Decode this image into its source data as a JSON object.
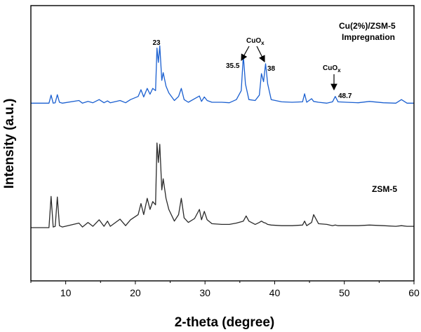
{
  "chart_data": {
    "type": "line",
    "title": "",
    "xlabel": "2-theta (degree)",
    "ylabel": "Intensity (a.u.)",
    "xlim": [
      5,
      60
    ],
    "xticks": [
      10,
      20,
      30,
      40,
      50,
      60
    ],
    "yticks_shown": false,
    "grid": false,
    "legend": "none",
    "series": [
      {
        "label_lines": [
          "Cu(2%)/ZSM-5",
          "Impregnation"
        ],
        "color": "#1a5fd0",
        "x": [
          5,
          7.6,
          7.9,
          8.2,
          8.5,
          8.8,
          9.1,
          9.5,
          11.9,
          12.4,
          13.2,
          13.9,
          14.8,
          15.5,
          16.0,
          16.4,
          17.8,
          18.6,
          19.3,
          20.4,
          20.8,
          21.2,
          21.7,
          22.1,
          22.5,
          22.9,
          23.1,
          23.3,
          23.5,
          23.8,
          24.0,
          24.4,
          24.8,
          25.6,
          26.2,
          26.6,
          27.0,
          27.6,
          28.5,
          29.2,
          29.5,
          29.9,
          30.3,
          31.0,
          32.4,
          33.5,
          34.5,
          35.2,
          35.5,
          35.8,
          36.3,
          37.2,
          37.8,
          38.1,
          38.4,
          38.7,
          39.0,
          39.5,
          41.0,
          42.5,
          44.0,
          44.3,
          44.6,
          45.3,
          45.6,
          46.3,
          47.5,
          48.3,
          48.7,
          49.1,
          50.3,
          52.0,
          53.6,
          55.6,
          57.4,
          58.2,
          59.0,
          60
        ],
        "y": [
          12,
          12,
          30,
          12,
          13,
          31,
          14,
          12,
          18,
          12,
          16,
          13,
          20,
          13,
          17,
          13,
          18,
          13,
          20,
          27,
          42,
          26,
          45,
          32,
          45,
          40,
          135,
          103,
          140,
          63,
          80,
          50,
          35,
          18,
          27,
          45,
          20,
          14,
          22,
          28,
          16,
          26,
          18,
          14,
          14,
          13,
          20,
          40,
          118,
          55,
          20,
          18,
          30,
          78,
          60,
          100,
          55,
          20,
          15,
          14,
          15,
          33,
          14,
          22,
          16,
          14,
          12,
          15,
          27,
          15,
          14,
          13,
          16,
          13,
          12,
          20,
          12,
          12
        ]
      },
      {
        "label_lines": [
          "ZSM-5"
        ],
        "color": "#2a2a2a",
        "x": [
          5,
          7.6,
          7.9,
          8.2,
          8.5,
          8.8,
          9.1,
          9.5,
          11.9,
          12.4,
          13.2,
          13.9,
          14.8,
          15.5,
          16.0,
          16.4,
          17.8,
          18.6,
          19.3,
          20.4,
          20.8,
          21.2,
          21.7,
          22.1,
          22.5,
          22.9,
          23.1,
          23.3,
          23.5,
          23.8,
          24.0,
          24.4,
          24.8,
          25.6,
          26.2,
          26.6,
          27.0,
          27.6,
          28.5,
          29.2,
          29.5,
          29.9,
          30.3,
          31.0,
          32.4,
          33.5,
          34.5,
          35.2,
          35.5,
          35.9,
          36.3,
          37.2,
          37.8,
          38.1,
          38.4,
          38.7,
          39.0,
          39.5,
          41.0,
          42.5,
          44.0,
          44.3,
          44.6,
          45.3,
          45.6,
          46.3,
          47.5,
          48.3,
          48.7,
          49.1,
          50.3,
          52.0,
          53.6,
          55.6,
          57.4,
          58.2,
          59.0,
          60
        ],
        "y": [
          0,
          0,
          48,
          1,
          2,
          47,
          3,
          1,
          7,
          1,
          8,
          2,
          12,
          2,
          10,
          2,
          13,
          3,
          12,
          20,
          37,
          20,
          45,
          28,
          40,
          35,
          130,
          100,
          128,
          58,
          75,
          45,
          28,
          10,
          20,
          45,
          15,
          8,
          14,
          28,
          12,
          25,
          12,
          6,
          5,
          5,
          7,
          9,
          10,
          18,
          10,
          5,
          8,
          10,
          8,
          7,
          5,
          4,
          3,
          3,
          4,
          10,
          3,
          8,
          20,
          6,
          5,
          3,
          4,
          3,
          3,
          3,
          4,
          3,
          2,
          3,
          2,
          2
        ]
      }
    ],
    "annotations": [
      {
        "text": "23"
      },
      {
        "text": "35.5"
      },
      {
        "text": "38"
      },
      {
        "text": "48.7"
      },
      {
        "text": "CuOx"
      },
      {
        "text": "CuOx"
      }
    ]
  }
}
